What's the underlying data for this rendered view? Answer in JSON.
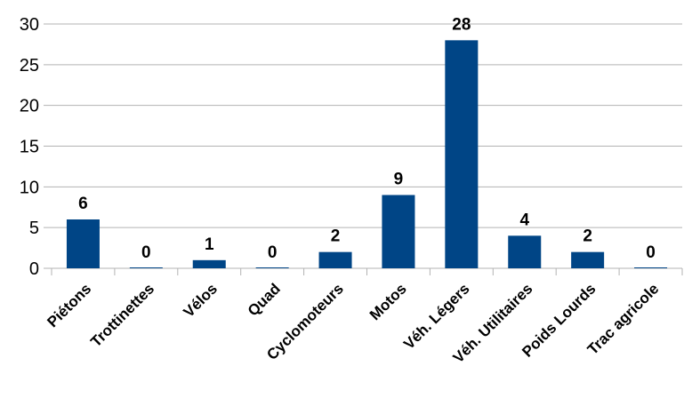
{
  "chart_data": {
    "type": "bar",
    "categories": [
      "Piétons",
      "Trottinettes",
      "Vélos",
      "Quad",
      "Cyclomoteurs",
      "Motos",
      "Véh. Légers",
      "Véh. Utilitaires",
      "Poids Lourds",
      "Trac agricole"
    ],
    "values": [
      6,
      0,
      1,
      0,
      2,
      9,
      28,
      4,
      2,
      0
    ],
    "title": "",
    "xlabel": "",
    "ylabel": "",
    "ylim": [
      0,
      30
    ],
    "yticks": [
      0,
      5,
      10,
      15,
      20,
      25,
      30
    ],
    "grid": true,
    "data_labels": true,
    "bar_color": "#004586"
  }
}
